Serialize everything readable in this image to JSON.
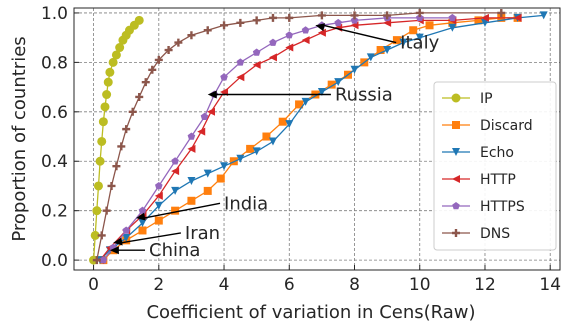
{
  "chart_data": {
    "type": "line",
    "title": "",
    "xlabel": "Coefficient of variation in Cens(Raw)",
    "ylabel": "Proportion of countries",
    "xlim": [
      -0.6,
      14.3
    ],
    "ylim": [
      -0.04,
      1.02
    ],
    "xticks": [
      0,
      2,
      4,
      6,
      8,
      10,
      12,
      14
    ],
    "yticks": [
      0.0,
      0.2,
      0.4,
      0.6,
      0.8,
      1.0
    ],
    "xtick_labels": [
      "0",
      "2",
      "4",
      "6",
      "8",
      "10",
      "12",
      "14"
    ],
    "ytick_labels": [
      "0.0",
      "0.2",
      "0.4",
      "0.6",
      "0.8",
      "1.0"
    ],
    "grid": true,
    "legend_position": "center-right",
    "series": [
      {
        "name": "IP",
        "color": "#bcbd22",
        "marker": "circle",
        "x": [
          0.0,
          0.05,
          0.1,
          0.15,
          0.2,
          0.25,
          0.3,
          0.35,
          0.4,
          0.45,
          0.5,
          0.6,
          0.7,
          0.8,
          0.9,
          1.0,
          1.1,
          1.25,
          1.4
        ],
        "y": [
          0.0,
          0.1,
          0.2,
          0.3,
          0.4,
          0.48,
          0.56,
          0.62,
          0.67,
          0.72,
          0.76,
          0.8,
          0.83,
          0.86,
          0.89,
          0.91,
          0.93,
          0.95,
          0.97
        ]
      },
      {
        "name": "Discard",
        "color": "#ff7f0e",
        "marker": "square",
        "x": [
          0.3,
          0.6,
          1.0,
          1.5,
          2.0,
          2.5,
          3.0,
          3.5,
          3.9,
          4.3,
          4.8,
          5.3,
          5.8,
          6.3,
          6.8,
          7.3,
          7.8,
          8.3,
          8.8,
          9.3,
          9.8,
          10.3,
          11.0,
          11.8,
          12.5,
          13.0
        ],
        "y": [
          0.0,
          0.04,
          0.08,
          0.12,
          0.16,
          0.2,
          0.24,
          0.28,
          0.33,
          0.4,
          0.45,
          0.5,
          0.56,
          0.63,
          0.67,
          0.71,
          0.75,
          0.8,
          0.85,
          0.89,
          0.93,
          0.95,
          0.96,
          0.97,
          0.98,
          0.98
        ]
      },
      {
        "name": "Echo",
        "color": "#1f77b4",
        "marker": "triangle-down",
        "x": [
          0.2,
          0.5,
          1.0,
          1.5,
          2.0,
          2.5,
          3.0,
          3.5,
          4.0,
          4.5,
          5.0,
          5.5,
          6.0,
          6.5,
          7.0,
          7.5,
          8.0,
          8.5,
          9.0,
          9.5,
          10.0,
          11.0,
          12.0,
          13.0,
          13.8
        ],
        "y": [
          0.0,
          0.04,
          0.09,
          0.15,
          0.22,
          0.28,
          0.32,
          0.35,
          0.38,
          0.41,
          0.44,
          0.48,
          0.55,
          0.64,
          0.68,
          0.72,
          0.77,
          0.82,
          0.85,
          0.88,
          0.9,
          0.94,
          0.96,
          0.98,
          0.99
        ]
      },
      {
        "name": "HTTP",
        "color": "#d62728",
        "marker": "triangle-left",
        "x": [
          0.2,
          0.5,
          1.0,
          1.5,
          2.0,
          2.5,
          3.0,
          3.3,
          3.6,
          4.0,
          4.5,
          5.0,
          5.5,
          6.0,
          6.5,
          7.0,
          7.5,
          8.0,
          9.0,
          10.0,
          11.0,
          12.0,
          13.0
        ],
        "y": [
          0.0,
          0.05,
          0.12,
          0.18,
          0.26,
          0.36,
          0.45,
          0.52,
          0.6,
          0.68,
          0.74,
          0.79,
          0.82,
          0.86,
          0.89,
          0.92,
          0.94,
          0.95,
          0.96,
          0.97,
          0.97,
          0.98,
          0.98
        ]
      },
      {
        "name": "HTTPS",
        "color": "#9467bd",
        "marker": "pentagon",
        "x": [
          0.3,
          0.6,
          1.0,
          1.5,
          2.0,
          2.5,
          3.0,
          3.4,
          3.7,
          4.0,
          4.5,
          5.0,
          5.5,
          6.0,
          6.5,
          7.0,
          7.5,
          8.0,
          9.0,
          10.0,
          11.0
        ],
        "y": [
          0.0,
          0.05,
          0.12,
          0.2,
          0.3,
          0.4,
          0.5,
          0.58,
          0.67,
          0.74,
          0.8,
          0.84,
          0.88,
          0.91,
          0.93,
          0.95,
          0.96,
          0.97,
          0.98,
          0.98,
          0.98
        ]
      },
      {
        "name": "DNS",
        "color": "#8c564b",
        "marker": "plus",
        "x": [
          0.1,
          0.25,
          0.4,
          0.55,
          0.7,
          0.85,
          1.0,
          1.2,
          1.4,
          1.6,
          1.8,
          2.0,
          2.3,
          2.6,
          3.0,
          3.5,
          4.0,
          4.5,
          5.0,
          5.5,
          6.0,
          7.0,
          8.0,
          9.0,
          10.0,
          12.5
        ],
        "y": [
          0.0,
          0.1,
          0.2,
          0.3,
          0.38,
          0.46,
          0.53,
          0.6,
          0.66,
          0.72,
          0.77,
          0.81,
          0.85,
          0.88,
          0.91,
          0.93,
          0.95,
          0.96,
          0.97,
          0.98,
          0.98,
          0.99,
          0.99,
          0.99,
          1.0,
          1.0
        ]
      }
    ],
    "annotations": [
      {
        "text": "Italy",
        "text_x": 9.4,
        "text_y": 0.88,
        "arrow_x": 6.8,
        "arrow_y": 0.95
      },
      {
        "text": "Russia",
        "text_x": 7.4,
        "text_y": 0.67,
        "arrow_x": 3.5,
        "arrow_y": 0.67
      },
      {
        "text": "India",
        "text_x": 4.0,
        "text_y": 0.23,
        "arrow_x": 1.3,
        "arrow_y": 0.17
      },
      {
        "text": "Iran",
        "text_x": 2.8,
        "text_y": 0.11,
        "arrow_x": 0.6,
        "arrow_y": 0.07
      },
      {
        "text": "China",
        "text_x": 1.7,
        "text_y": 0.04,
        "arrow_x": 0.5,
        "arrow_y": 0.04
      }
    ]
  }
}
